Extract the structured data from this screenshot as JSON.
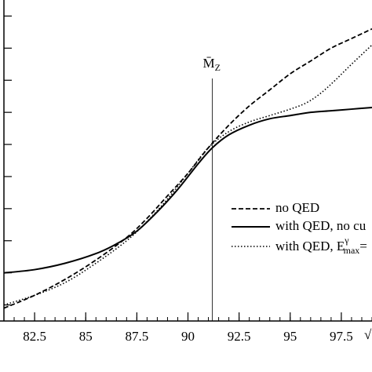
{
  "chart_data": {
    "type": "line",
    "xlim": [
      81.0,
      99.0
    ],
    "ylim": [
      0.0,
      1.0
    ],
    "x_ticks": [
      {
        "value": 82.5,
        "label": "82.5"
      },
      {
        "value": 85,
        "label": "85"
      },
      {
        "value": 87.5,
        "label": "87.5"
      },
      {
        "value": 90,
        "label": "90"
      },
      {
        "value": 92.5,
        "label": "92.5"
      },
      {
        "value": 95,
        "label": "95"
      },
      {
        "value": 97.5,
        "label": "97.5"
      }
    ],
    "x_minor_step": 0.5,
    "y_ticks": [
      0.05,
      0.15,
      0.25,
      0.35,
      0.45,
      0.55,
      0.65,
      0.75,
      0.85,
      0.95
    ],
    "xlabel": "√",
    "grid": false,
    "legend_position": "right",
    "reference_line": {
      "x": 91.19,
      "label_main": "M̄",
      "label_sub": "Z"
    },
    "series": [
      {
        "name": "no QED",
        "style": "dashed",
        "x": [
          81.0,
          82.5,
          84.0,
          85.5,
          87.0,
          88.0,
          89.0,
          90.0,
          91.0,
          92.0,
          93.0,
          94.0,
          95.0,
          96.0,
          97.0,
          98.0,
          99.0
        ],
        "y": [
          0.04,
          0.08,
          0.13,
          0.19,
          0.26,
          0.32,
          0.39,
          0.46,
          0.54,
          0.61,
          0.67,
          0.72,
          0.77,
          0.81,
          0.85,
          0.88,
          0.91
        ]
      },
      {
        "name": "with QED, no cu",
        "style": "solid",
        "x": [
          81.0,
          82.5,
          84.0,
          85.5,
          86.5,
          87.5,
          88.5,
          89.5,
          90.5,
          91.2,
          92.0,
          93.0,
          94.0,
          95.0,
          96.0,
          97.0,
          98.0,
          99.0
        ],
        "y": [
          0.15,
          0.16,
          0.18,
          0.21,
          0.24,
          0.28,
          0.34,
          0.41,
          0.49,
          0.54,
          0.58,
          0.61,
          0.63,
          0.64,
          0.65,
          0.655,
          0.66,
          0.665
        ]
      },
      {
        "name": "with QED, E",
        "name_super": "γ",
        "name_sub": "max",
        "name_tail": "=",
        "style": "dotted",
        "x": [
          81.0,
          82.5,
          84.0,
          85.5,
          87.0,
          88.0,
          89.0,
          90.0,
          91.0,
          92.0,
          93.0,
          94.0,
          95.0,
          95.8,
          96.5,
          97.2,
          98.0,
          99.0
        ],
        "y": [
          0.05,
          0.08,
          0.12,
          0.18,
          0.25,
          0.31,
          0.38,
          0.46,
          0.54,
          0.59,
          0.62,
          0.64,
          0.66,
          0.68,
          0.71,
          0.75,
          0.8,
          0.86
        ]
      }
    ]
  }
}
